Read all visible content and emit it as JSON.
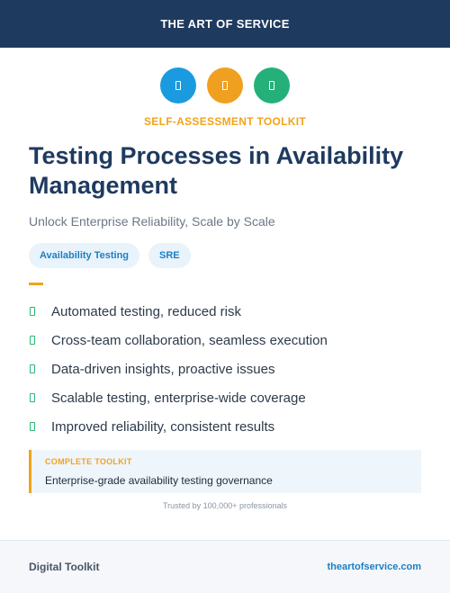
{
  "header": {
    "brand": "THE ART OF SERVICE"
  },
  "icons": [
    {
      "name": "book-icon",
      "color": "#1a9be0"
    },
    {
      "name": "document-icon",
      "color": "#f0a020"
    },
    {
      "name": "checklist-icon",
      "color": "#25b07a"
    }
  ],
  "eyebrow": "SELF-ASSESSMENT TOOLKIT",
  "title": "Testing Processes in Availability Management",
  "subtitle": "Unlock Enterprise Reliability, Scale by Scale",
  "tags": [
    "Availability Testing",
    "SRE"
  ],
  "features": [
    "Automated testing, reduced risk",
    "Cross-team collaboration, seamless execution",
    "Data-driven insights, proactive issues",
    "Scalable testing, enterprise-wide coverage",
    "Improved reliability, consistent results"
  ],
  "callout": {
    "label": "COMPLETE TOOLKIT",
    "text": "Enterprise-grade availability testing governance"
  },
  "trusted": "Trusted by 100,000+ professionals",
  "footer": {
    "left": "Digital Toolkit",
    "right": "theartofservice.com"
  },
  "colors": {
    "navy": "#1f3a5f",
    "accent": "#f2a31b",
    "link": "#1d7fc4",
    "check": "#2bb673"
  }
}
